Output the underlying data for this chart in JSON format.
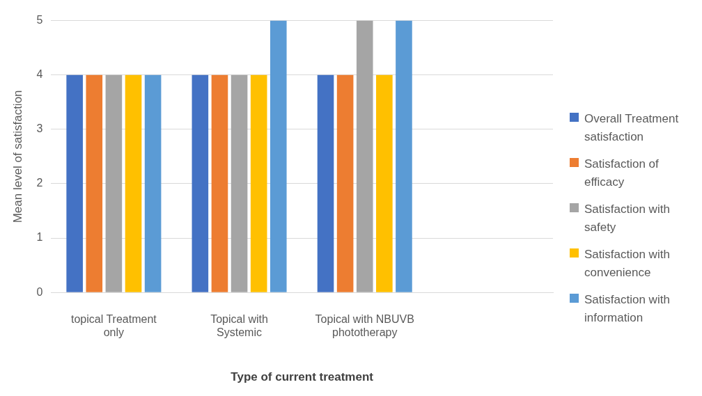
{
  "chart_data": {
    "type": "bar",
    "xlabel": "Type of current treatment",
    "ylabel": "Mean level of satisfaction",
    "categories": [
      "topical Treatment only",
      "Topical with Systemic",
      "Topical with NBUVB phototherapy",
      null
    ],
    "series": [
      {
        "name": "Overall Treatment satisfaction",
        "color": "#4472c4",
        "values": [
          4,
          4,
          4,
          null
        ]
      },
      {
        "name": "Satisfaction of efficacy",
        "color": "#ed7d31",
        "values": [
          4,
          4,
          4,
          null
        ]
      },
      {
        "name": "Satisfaction with safety",
        "color": "#a5a5a5",
        "values": [
          4,
          4,
          5,
          null
        ]
      },
      {
        "name": "Satisfaction with convenience",
        "color": "#ffc000",
        "values": [
          4,
          4,
          4,
          null
        ]
      },
      {
        "name": "Satisfaction with information",
        "color": "#5b9bd5",
        "values": [
          4,
          5,
          5,
          null
        ]
      }
    ],
    "ylim": [
      0,
      5
    ],
    "yticks": [
      0,
      1,
      2,
      3,
      4,
      5
    ],
    "grid": "y",
    "legend": "right"
  }
}
